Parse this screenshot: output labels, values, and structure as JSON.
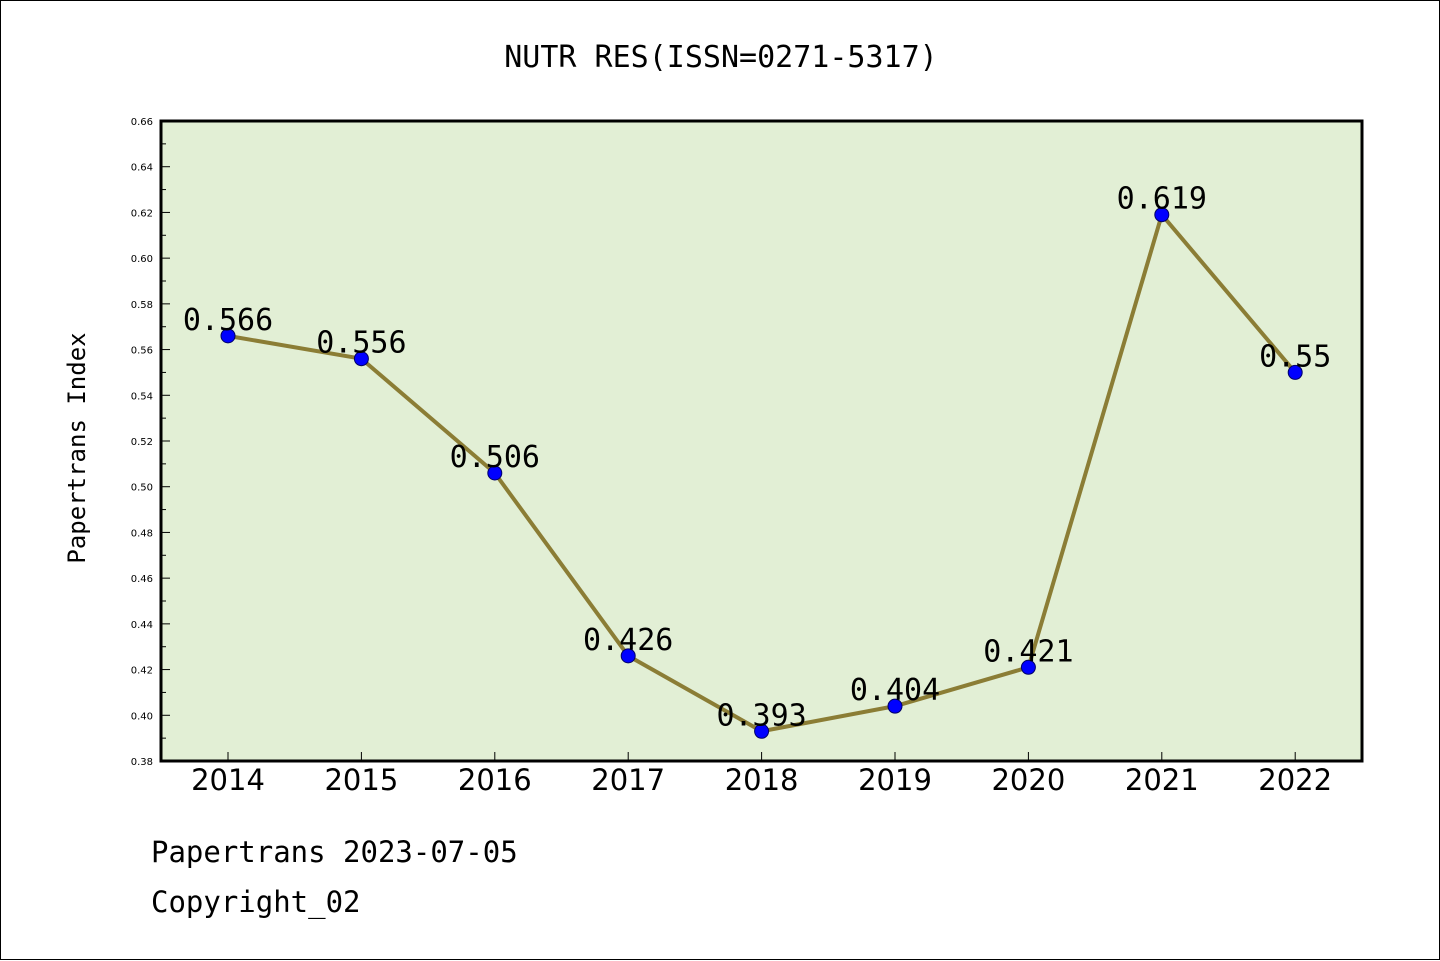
{
  "chart_data": {
    "type": "line",
    "title": "NUTR RES(ISSN=0271-5317)",
    "xlabel": "",
    "ylabel": "Papertrans Index",
    "categories": [
      "2014",
      "2015",
      "2016",
      "2017",
      "2018",
      "2019",
      "2020",
      "2021",
      "2022"
    ],
    "values": [
      0.566,
      0.556,
      0.506,
      0.426,
      0.393,
      0.404,
      0.421,
      0.619,
      0.55
    ],
    "data_labels": [
      "0.566",
      "0.556",
      "0.506",
      "0.426",
      "0.393",
      "0.404",
      "0.421",
      "0.619",
      "0.55"
    ],
    "ylim": [
      0.38,
      0.66
    ],
    "yticks": [
      0.38,
      0.4,
      0.42,
      0.44,
      0.46,
      0.48,
      0.5,
      0.52,
      0.54,
      0.56,
      0.58,
      0.6,
      0.62,
      0.64,
      0.66
    ],
    "ytick_labels": [
      "0.38",
      "0.40",
      "0.42",
      "0.44",
      "0.46",
      "0.48",
      "0.50",
      "0.52",
      "0.54",
      "0.56",
      "0.58",
      "0.60",
      "0.62",
      "0.64",
      "0.66"
    ],
    "grid": false,
    "legend": "none",
    "colors": {
      "plot_background": "#e2efd5",
      "line": "#8b7d35",
      "marker": "#0000ff",
      "marker_edge": "#000066"
    }
  },
  "footer": {
    "line1": "Papertrans 2023-07-05",
    "line2": "Copyright_02"
  }
}
